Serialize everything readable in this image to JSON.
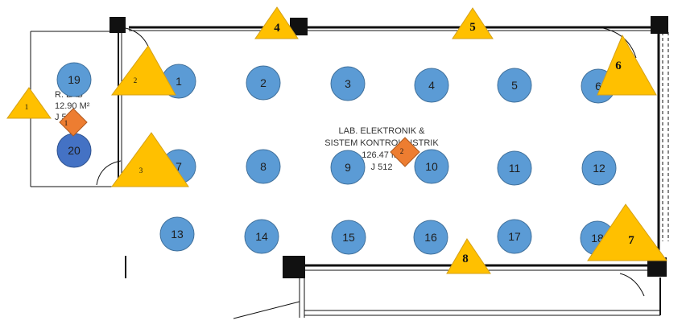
{
  "colors": {
    "circle_fill": "#5b9bd5",
    "circle_stroke": "#41719c",
    "circle_dark_fill": "#4472c4",
    "circle_dark_stroke": "#2f528f",
    "triangle_fill": "#ffc000",
    "triangle_stroke": "#d4a017",
    "diamond_fill": "#ed7d31",
    "diamond_stroke": "#ae5a21",
    "wall": "#111111"
  },
  "small_room": {
    "name": "R. LAB",
    "area": "12.90 M²",
    "code": "J 513"
  },
  "main_room": {
    "line1": "LAB. ELEKTRONIK &",
    "line2": "SISTEM KONTROL LISTRIK",
    "area": "126.47 M²",
    "code": "J 512"
  },
  "stations": [
    {
      "label": "1"
    },
    {
      "label": "2"
    },
    {
      "label": "3"
    },
    {
      "label": "4"
    },
    {
      "label": "5"
    },
    {
      "label": "6"
    },
    {
      "label": "7"
    },
    {
      "label": "8"
    },
    {
      "label": "9"
    },
    {
      "label": "10"
    },
    {
      "label": "11"
    },
    {
      "label": "12"
    },
    {
      "label": "13"
    },
    {
      "label": "14"
    },
    {
      "label": "15"
    },
    {
      "label": "16"
    },
    {
      "label": "17"
    },
    {
      "label": "18"
    },
    {
      "label": "19"
    },
    {
      "label": "20"
    }
  ],
  "small_markers": [
    {
      "label": "1"
    },
    {
      "label": "2"
    },
    {
      "label": "3"
    }
  ],
  "big_markers": [
    {
      "label": "4"
    },
    {
      "label": "5"
    },
    {
      "label": "6"
    },
    {
      "label": "7"
    },
    {
      "label": "8"
    }
  ],
  "diamonds": [
    {
      "label": "1"
    },
    {
      "label": "2"
    }
  ]
}
